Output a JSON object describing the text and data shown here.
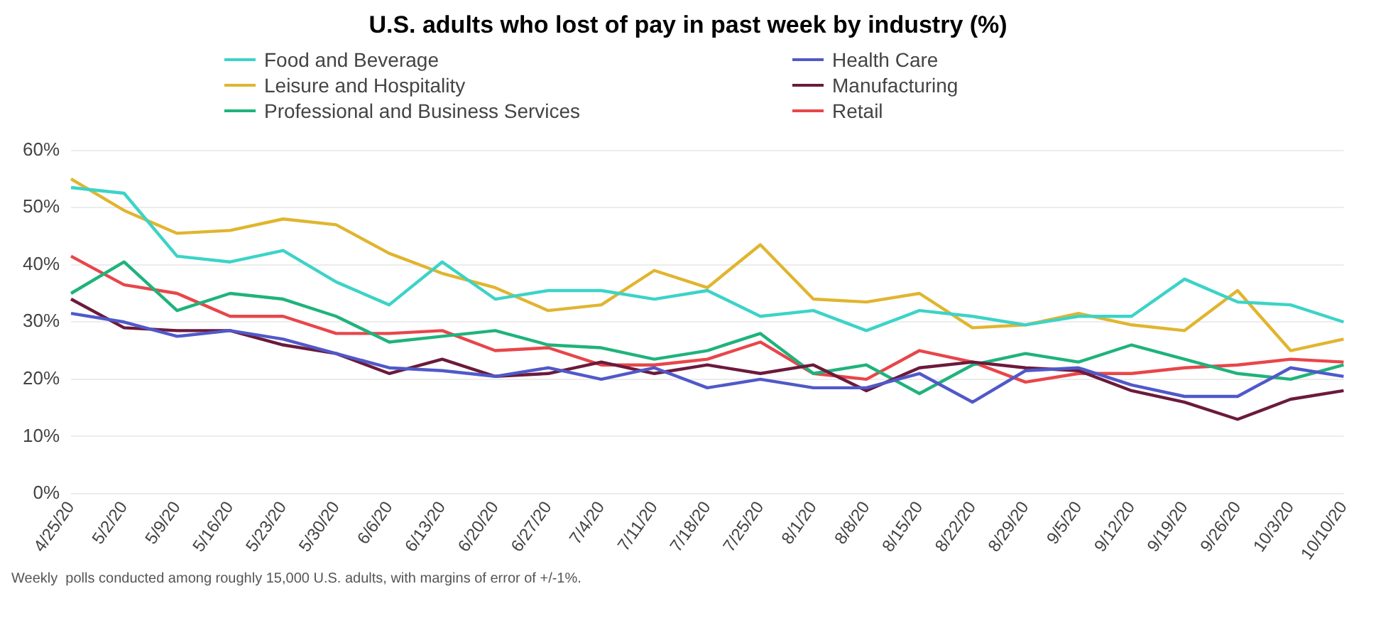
{
  "chart_data": {
    "type": "line",
    "title": "U.S. adults who lost of pay in past week by industry (%)",
    "categories": [
      "4/25/20",
      "5/2/20",
      "5/9/20",
      "5/16/20",
      "5/23/20",
      "5/30/20",
      "6/6/20",
      "6/13/20",
      "6/20/20",
      "6/27/20",
      "7/4/20",
      "7/11/20",
      "7/18/20",
      "7/25/20",
      "8/1/20",
      "8/8/20",
      "8/15/20",
      "8/22/20",
      "8/29/20",
      "9/5/20",
      "9/12/20",
      "9/19/20",
      "9/26/20",
      "10/3/20",
      "10/10/20"
    ],
    "series": [
      {
        "name": "Food and Beverage",
        "color": "#3cd3c8",
        "values": [
          53.5,
          52.5,
          41.5,
          40.5,
          42.5,
          37,
          33,
          40.5,
          34,
          35.5,
          35.5,
          34,
          35.5,
          31,
          32,
          28.5,
          32,
          31,
          29.5,
          31,
          31,
          37.5,
          33.5,
          33,
          30
        ]
      },
      {
        "name": "Health Care",
        "color": "#5059c9",
        "values": [
          31.5,
          30,
          27.5,
          28.5,
          27,
          24.5,
          22,
          21.5,
          20.5,
          22,
          20,
          22,
          18.5,
          20,
          18.5,
          18.5,
          21,
          16,
          21.5,
          22,
          19,
          17,
          17,
          22,
          20.5
        ]
      },
      {
        "name": "Leisure and Hospitality",
        "color": "#e0b52f",
        "values": [
          55,
          49.5,
          45.5,
          46,
          48,
          47,
          42,
          38.5,
          36,
          32,
          33,
          39,
          36,
          43.5,
          34,
          33.5,
          35,
          29,
          29.5,
          31.5,
          29.5,
          28.5,
          35.5,
          25,
          27
        ]
      },
      {
        "name": "Manufacturing",
        "color": "#6b1a3c",
        "values": [
          34,
          29,
          28.5,
          28.5,
          26,
          24.5,
          21,
          23.5,
          20.5,
          21,
          23,
          21,
          22.5,
          21,
          22.5,
          18,
          22,
          23,
          22,
          21.5,
          18,
          16,
          13,
          16.5,
          18
        ]
      },
      {
        "name": "Professional and Business Services",
        "color": "#1fb37c",
        "values": [
          35,
          40.5,
          32,
          35,
          34,
          31,
          26.5,
          27.5,
          28.5,
          26,
          25.5,
          23.5,
          25,
          28,
          21,
          22.5,
          17.5,
          22.5,
          24.5,
          23,
          26,
          23.5,
          21,
          20,
          22.5
        ]
      },
      {
        "name": "Retail",
        "color": "#e8464a",
        "values": [
          41.5,
          36.5,
          35,
          31,
          31,
          28,
          28,
          28.5,
          25,
          25.5,
          22.5,
          22.5,
          23.5,
          26.5,
          21,
          20,
          25,
          23,
          19.5,
          21,
          21,
          22,
          22.5,
          23.5,
          23
        ]
      }
    ],
    "ylim": [
      0,
      60
    ],
    "yticks": [
      {
        "value": 0,
        "label": "0%"
      },
      {
        "value": 10,
        "label": "10%"
      },
      {
        "value": 20,
        "label": "20%"
      },
      {
        "value": 30,
        "label": "30%"
      },
      {
        "value": 40,
        "label": "40%"
      },
      {
        "value": 50,
        "label": "50%"
      },
      {
        "value": 60,
        "label": "60%"
      }
    ],
    "grid": "y",
    "legend": "top",
    "marker": "none",
    "line_style": "solid",
    "annotations": [
      "Weekly  polls conducted among roughly 15,000 U.S. adults, with margins of error of +/-1%."
    ]
  }
}
